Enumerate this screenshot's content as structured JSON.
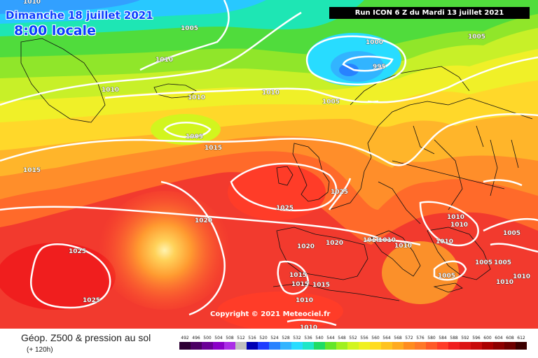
{
  "header": {
    "date": "Dimanche 18 juillet 2021",
    "time": "8:00 locale",
    "run": "Run ICON 6 Z du Mardi 13 juillet 2021"
  },
  "copyright": "Copyright © 2021 Meteociel.fr",
  "footer": {
    "title": "Géop. Z500 & pression au sol",
    "subtitle": "(+ 120h)"
  },
  "legend": {
    "labels": [
      "492",
      "496",
      "500",
      "504",
      "508",
      "512",
      "516",
      "520",
      "524",
      "528",
      "532",
      "536",
      "540",
      "544",
      "548",
      "552",
      "556",
      "560",
      "564",
      "568",
      "572",
      "576",
      "580",
      "584",
      "588",
      "592",
      "596",
      "600",
      "604",
      "608",
      "612"
    ],
    "colors": [
      "#2d0033",
      "#4b0063",
      "#6a0096",
      "#8a00c8",
      "#aa2ee6",
      "#c0c0c0",
      "#0000b4",
      "#1e3cff",
      "#2882ff",
      "#32b4ff",
      "#28dcff",
      "#1ee6c8",
      "#1edc64",
      "#64e628",
      "#a0f01e",
      "#d2f51e",
      "#f0f01e",
      "#ffdc1e",
      "#ffc31e",
      "#ffaa1e",
      "#ff8c1e",
      "#ff7828",
      "#ff5a28",
      "#ff3c28",
      "#f01e1e",
      "#dc1414",
      "#c80a0a",
      "#aa0000",
      "#8c0000",
      "#6e0000",
      "#3c0000"
    ]
  },
  "isobars": [
    "1010",
    "1005",
    "1010",
    "1010",
    "1010",
    "1005",
    "1000",
    "995",
    "1005",
    "1010",
    "1005",
    "1010",
    "1015",
    "1015",
    "1025",
    "1025",
    "1020",
    "1025",
    "1020",
    "1020",
    "1010",
    "1010",
    "1010",
    "1010",
    "1010",
    "1010",
    "1005",
    "1005",
    "1005",
    "1025",
    "1025",
    "1015",
    "1015",
    "1015",
    "1010",
    "1010",
    "1010",
    "1010"
  ],
  "colors": {
    "isobar": "#ffffff",
    "coast": "#111111",
    "header_text": "#0a3cff"
  }
}
